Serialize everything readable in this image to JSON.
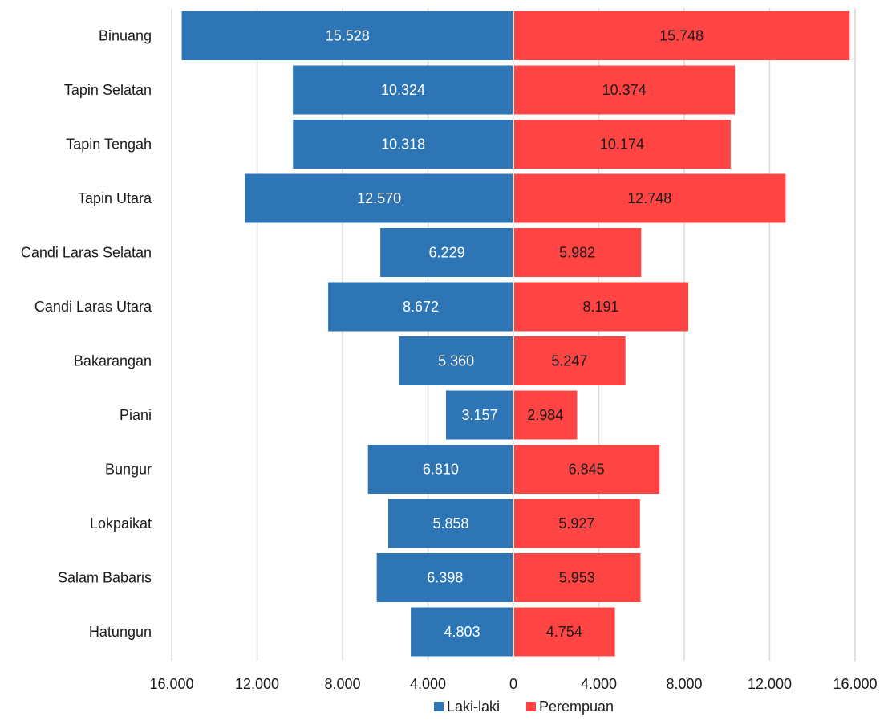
{
  "chart_data": {
    "type": "bar",
    "orientation": "horizontal",
    "layout": "population-pyramid",
    "categories": [
      "Binuang",
      "Tapin Selatan",
      "Tapin Tengah",
      "Tapin Utara",
      "Candi Laras Selatan",
      "Candi Laras Utara",
      "Bakarangan",
      "Piani",
      "Bungur",
      "Lokpaikat",
      "Salam Babaris",
      "Hatungun"
    ],
    "series": [
      {
        "name": "Laki-laki",
        "color": "#2e75b6",
        "label_color": "#ffffff",
        "side": "left",
        "values": [
          15528,
          10324,
          10318,
          12570,
          6229,
          8672,
          5360,
          3157,
          6810,
          5858,
          6398,
          4803
        ],
        "labels": [
          "15.528",
          "10.324",
          "10.318",
          "12.570",
          "6.229",
          "8.672",
          "5.360",
          "3.157",
          "6.810",
          "5.858",
          "6.398",
          "4.803"
        ]
      },
      {
        "name": "Perempuan",
        "color": "#ff4444",
        "label_color": "#1a1a1a",
        "side": "right",
        "values": [
          15748,
          10374,
          10174,
          12748,
          5982,
          8191,
          5247,
          2984,
          6845,
          5927,
          5953,
          4754
        ],
        "labels": [
          "15.748",
          "10.374",
          "10.174",
          "12.748",
          "5.982",
          "8.191",
          "5.247",
          "2.984",
          "6.845",
          "5.927",
          "5.953",
          "4.754"
        ]
      }
    ],
    "xlim": [
      -16000,
      16000
    ],
    "x_ticks": [
      -16000,
      -12000,
      -8000,
      -4000,
      0,
      4000,
      8000,
      12000,
      16000
    ],
    "x_tick_labels": [
      "16.000",
      "12.000",
      "8.000",
      "4.000",
      "0",
      "4.000",
      "8.000",
      "12.000",
      "16.000"
    ],
    "grid": "vertical",
    "gridline_color": "#d9d9d9",
    "legend_position": "bottom",
    "title": "",
    "xlabel": "",
    "ylabel": ""
  }
}
